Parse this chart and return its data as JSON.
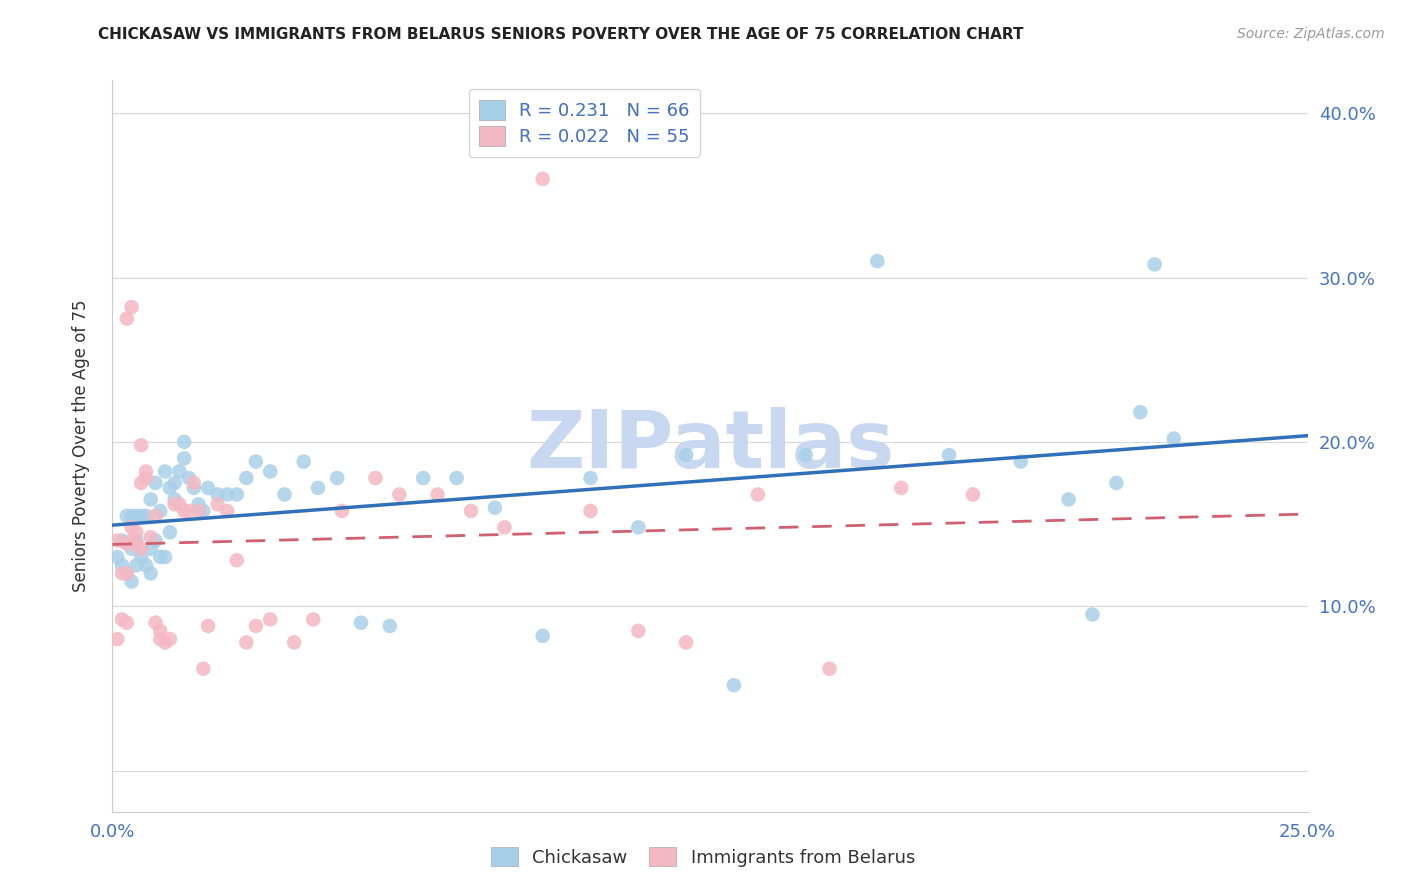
{
  "title": "CHICKASAW VS IMMIGRANTS FROM BELARUS SENIORS POVERTY OVER THE AGE OF 75 CORRELATION CHART",
  "source": "Source: ZipAtlas.com",
  "ylabel": "Seniors Poverty Over the Age of 75",
  "xlim": [
    0.0,
    0.25
  ],
  "ylim": [
    -0.025,
    0.42
  ],
  "R_chickasaw": 0.231,
  "N_chickasaw": 66,
  "R_belarus": 0.022,
  "N_belarus": 55,
  "blue_color": "#a8cfe8",
  "pink_color": "#f4b8c4",
  "blue_line_color": "#3070b8",
  "pink_line_color": "#d06070",
  "axis_label_color": "#4472c4",
  "watermark_color": "#c8d8f0",
  "chickasaw_x": [
    0.001,
    0.002,
    0.002,
    0.003,
    0.003,
    0.004,
    0.004,
    0.004,
    0.005,
    0.005,
    0.005,
    0.006,
    0.006,
    0.007,
    0.007,
    0.008,
    0.008,
    0.008,
    0.009,
    0.009,
    0.01,
    0.01,
    0.011,
    0.011,
    0.012,
    0.012,
    0.013,
    0.013,
    0.014,
    0.015,
    0.015,
    0.016,
    0.017,
    0.018,
    0.019,
    0.02,
    0.022,
    0.024,
    0.026,
    0.028,
    0.03,
    0.033,
    0.036,
    0.04,
    0.043,
    0.047,
    0.052,
    0.058,
    0.065,
    0.072,
    0.08,
    0.09,
    0.1,
    0.11,
    0.12,
    0.13,
    0.145,
    0.16,
    0.175,
    0.19,
    0.2,
    0.205,
    0.21,
    0.215,
    0.218,
    0.222
  ],
  "chickasaw_y": [
    0.13,
    0.125,
    0.14,
    0.12,
    0.155,
    0.115,
    0.135,
    0.155,
    0.125,
    0.14,
    0.155,
    0.13,
    0.155,
    0.125,
    0.155,
    0.12,
    0.165,
    0.135,
    0.14,
    0.175,
    0.13,
    0.158,
    0.182,
    0.13,
    0.172,
    0.145,
    0.175,
    0.165,
    0.182,
    0.2,
    0.19,
    0.178,
    0.172,
    0.162,
    0.158,
    0.172,
    0.168,
    0.168,
    0.168,
    0.178,
    0.188,
    0.182,
    0.168,
    0.188,
    0.172,
    0.178,
    0.09,
    0.088,
    0.178,
    0.178,
    0.16,
    0.082,
    0.178,
    0.148,
    0.192,
    0.052,
    0.192,
    0.31,
    0.192,
    0.188,
    0.165,
    0.095,
    0.175,
    0.218,
    0.308,
    0.202
  ],
  "belarus_x": [
    0.001,
    0.001,
    0.002,
    0.002,
    0.003,
    0.003,
    0.003,
    0.003,
    0.004,
    0.004,
    0.004,
    0.005,
    0.005,
    0.006,
    0.006,
    0.006,
    0.007,
    0.007,
    0.008,
    0.009,
    0.009,
    0.01,
    0.01,
    0.011,
    0.012,
    0.013,
    0.014,
    0.015,
    0.016,
    0.017,
    0.018,
    0.019,
    0.02,
    0.022,
    0.024,
    0.026,
    0.028,
    0.03,
    0.033,
    0.038,
    0.042,
    0.048,
    0.055,
    0.06,
    0.068,
    0.075,
    0.082,
    0.09,
    0.1,
    0.11,
    0.12,
    0.135,
    0.15,
    0.165,
    0.18
  ],
  "belarus_y": [
    0.14,
    0.08,
    0.092,
    0.12,
    0.09,
    0.12,
    0.275,
    0.138,
    0.14,
    0.148,
    0.282,
    0.138,
    0.145,
    0.135,
    0.198,
    0.175,
    0.178,
    0.182,
    0.142,
    0.155,
    0.09,
    0.08,
    0.085,
    0.078,
    0.08,
    0.162,
    0.162,
    0.158,
    0.158,
    0.175,
    0.158,
    0.062,
    0.088,
    0.162,
    0.158,
    0.128,
    0.078,
    0.088,
    0.092,
    0.078,
    0.092,
    0.158,
    0.178,
    0.168,
    0.168,
    0.158,
    0.148,
    0.36,
    0.158,
    0.085,
    0.078,
    0.168,
    0.062,
    0.172,
    0.168
  ]
}
